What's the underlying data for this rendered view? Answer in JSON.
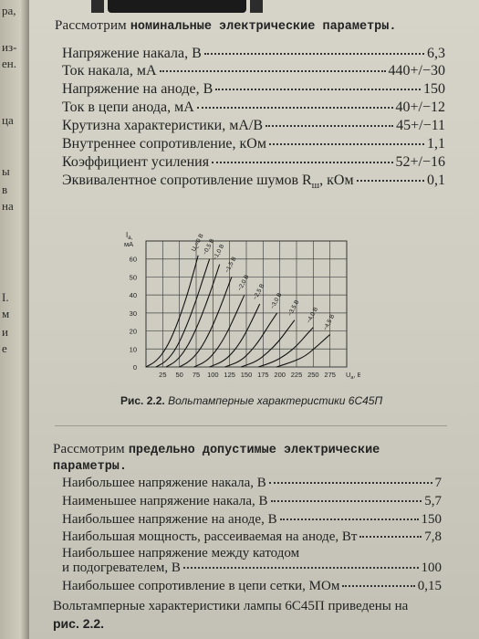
{
  "left_page": {
    "fragments": [
      "pa,",
      "из-",
      "ен.",
      "ца",
      "ы",
      "в",
      "на",
      "I.",
      "м",
      "и",
      "е"
    ]
  },
  "section1": {
    "intro_prefix": "Рассмотрим",
    "intro_bold": "номинальные электрические параметры.",
    "params": [
      {
        "label": "Напряжение накала, В",
        "value": "6,3"
      },
      {
        "label": "Ток накала, мА",
        "value": "440+/−30"
      },
      {
        "label": "Напряжение на аноде, В",
        "value": "150"
      },
      {
        "label": "Ток в цепи анода, мА",
        "value": "40+/−12"
      },
      {
        "label": "Крутизна характеристики, мА/В",
        "value": "45+/−11"
      },
      {
        "label": "Внутреннее сопротивление, кОм",
        "value": "1,1"
      },
      {
        "label": "Коэффициент усиления",
        "value": "52+/−16"
      },
      {
        "label": "Эквивалентное сопротивление шумов R",
        "label_sub": "ш",
        "label_suffix": ", кОм",
        "value": "0,1"
      }
    ]
  },
  "chart_data": {
    "type": "line",
    "title": "",
    "xlabel": "U",
    "xlabel_sub": "a",
    "xunit": ", В",
    "ylabel": "I",
    "ylabel_sub": "a",
    "yunit": "мА",
    "xlim": [
      0,
      300
    ],
    "ylim": [
      0,
      70
    ],
    "x_ticks": [
      "25",
      "50",
      "75",
      "100",
      "125",
      "150",
      "175",
      "200",
      "225",
      "250",
      "275"
    ],
    "y_ticks": [
      "0",
      "10",
      "20",
      "30",
      "40",
      "50",
      "60"
    ],
    "y_tick_values": [
      0,
      10,
      20,
      30,
      40,
      50,
      60
    ],
    "x_tick_values": [
      25,
      50,
      75,
      100,
      125,
      150,
      175,
      200,
      225,
      250,
      275
    ],
    "grid": true,
    "series": [
      {
        "name": "U_c=0 В",
        "label": "U",
        "label_sub": "c",
        "label_rest": "=0 В",
        "points": [
          [
            0,
            0
          ],
          [
            15,
            3
          ],
          [
            30,
            10
          ],
          [
            45,
            22
          ],
          [
            60,
            38
          ],
          [
            70,
            51
          ],
          [
            78,
            62
          ]
        ]
      },
      {
        "name": "−0,5 В",
        "label": "−0,5 В",
        "points": [
          [
            15,
            0
          ],
          [
            30,
            3
          ],
          [
            45,
            10
          ],
          [
            60,
            22
          ],
          [
            75,
            37
          ],
          [
            87,
            51
          ],
          [
            95,
            60
          ]
        ]
      },
      {
        "name": "−1,0 В",
        "label": "−1,0 В",
        "points": [
          [
            30,
            0
          ],
          [
            45,
            3
          ],
          [
            60,
            10
          ],
          [
            75,
            21
          ],
          [
            90,
            35
          ],
          [
            103,
            49
          ],
          [
            110,
            57
          ]
        ]
      },
      {
        "name": "−1,5 В",
        "label": "−1,5 В",
        "points": [
          [
            50,
            0
          ],
          [
            65,
            3
          ],
          [
            80,
            9
          ],
          [
            95,
            19
          ],
          [
            110,
            32
          ],
          [
            122,
            44
          ],
          [
            128,
            50
          ]
        ]
      },
      {
        "name": "−2,0 В",
        "label": "−2,0 В",
        "points": [
          [
            72,
            0
          ],
          [
            90,
            3
          ],
          [
            105,
            9
          ],
          [
            120,
            18
          ],
          [
            135,
            30
          ],
          [
            147,
            40
          ]
        ]
      },
      {
        "name": "−2,5 В",
        "label": "−2,5 В",
        "points": [
          [
            95,
            0
          ],
          [
            115,
            3
          ],
          [
            130,
            8
          ],
          [
            145,
            16
          ],
          [
            160,
            27
          ],
          [
            170,
            35
          ]
        ]
      },
      {
        "name": "−3,0 В",
        "label": "−3,0 В",
        "points": [
          [
            118,
            0
          ],
          [
            140,
            3
          ],
          [
            155,
            8
          ],
          [
            170,
            15
          ],
          [
            185,
            24
          ],
          [
            196,
            30
          ]
        ]
      },
      {
        "name": "−3,5 В",
        "label": "−3,5 В",
        "points": [
          [
            142,
            0
          ],
          [
            165,
            3
          ],
          [
            182,
            8
          ],
          [
            198,
            14
          ],
          [
            212,
            21
          ],
          [
            222,
            26
          ]
        ]
      },
      {
        "name": "−4,0 В",
        "label": "−4,0 В",
        "points": [
          [
            168,
            0
          ],
          [
            192,
            3
          ],
          [
            210,
            7
          ],
          [
            226,
            12
          ],
          [
            240,
            18
          ],
          [
            250,
            22
          ]
        ]
      },
      {
        "name": "−4,5 В",
        "label": "−4,5 В",
        "points": [
          [
            195,
            0
          ],
          [
            220,
            3
          ],
          [
            238,
            6
          ],
          [
            254,
            11
          ],
          [
            266,
            15
          ],
          [
            275,
            18
          ]
        ]
      }
    ],
    "caption_bold": "Рис. 2.2.",
    "caption_italic": "Вольтамперные характеристики 6С45П"
  },
  "section2": {
    "intro_prefix": "Рассмотрим",
    "intro_bold_line1": "предельно допустимые электрические",
    "intro_bold_line2": "параметры.",
    "params": [
      {
        "label": "Наибольшее напряжение накала, В",
        "value": "7"
      },
      {
        "label": "Наименьшее напряжение накала, В",
        "value": "5,7"
      },
      {
        "label": "Наибольшее напряжение на аноде, В",
        "value": "150"
      },
      {
        "label": "Наибольшая мощность, рассеиваемая на аноде, Вт",
        "value": "7,8"
      },
      {
        "label": "Наибольшее напряжение между катодом",
        "label_line2": "и подогревателем, В",
        "value": "100"
      },
      {
        "label": "Наибольшее сопротивление в цепи сетки, МОм",
        "value": "0,15"
      }
    ]
  },
  "footer": {
    "line1": "Вольтамперные характеристики лампы 6С45П приведены на",
    "line2": "рис. 2.2."
  }
}
